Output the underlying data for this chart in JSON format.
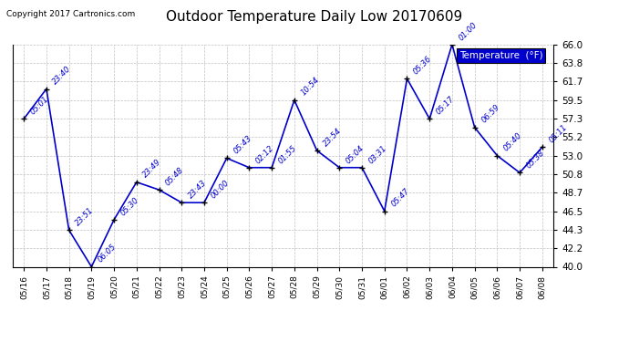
{
  "title": "Outdoor Temperature Daily Low 20170609",
  "copyright": "Copyright 2017 Cartronics.com",
  "legend_label": "Temperature  (°F)",
  "x_labels": [
    "05/16",
    "05/17",
    "05/18",
    "05/19",
    "05/20",
    "05/21",
    "05/22",
    "05/23",
    "05/24",
    "05/25",
    "05/26",
    "05/27",
    "05/28",
    "05/29",
    "05/30",
    "05/31",
    "06/01",
    "06/02",
    "06/03",
    "06/04",
    "06/05",
    "06/06",
    "06/07",
    "06/08"
  ],
  "temperatures": [
    57.3,
    60.8,
    44.3,
    40.0,
    45.5,
    49.9,
    49.0,
    47.5,
    47.5,
    52.7,
    51.6,
    51.6,
    59.5,
    53.6,
    51.6,
    51.6,
    46.5,
    62.0,
    57.3,
    66.0,
    56.3,
    53.0,
    51.0,
    54.0
  ],
  "time_labels": [
    "05:01",
    "23:40",
    "23:51",
    "06:05",
    "05:30",
    "23:49",
    "05:48",
    "23:43",
    "00:00",
    "05:43",
    "02:12",
    "01:55",
    "10:54",
    "23:54",
    "05:04",
    "03:31",
    "05:47",
    "05:36",
    "05:17",
    "01:00",
    "06:59",
    "05:40",
    "05:38",
    "05:11"
  ],
  "ylim": [
    40.0,
    66.0
  ],
  "yticks": [
    40.0,
    42.2,
    44.3,
    46.5,
    48.7,
    50.8,
    53.0,
    55.2,
    57.3,
    59.5,
    61.7,
    63.8,
    66.0
  ],
  "line_color": "#0000cc",
  "marker_color": "#000000",
  "bg_color": "#ffffff",
  "grid_color": "#b0b0b0",
  "title_fontsize": 11,
  "annotation_fontsize": 6,
  "text_color": "#0000cc",
  "legend_bg": "#0000cc",
  "legend_text_color": "#ffffff"
}
